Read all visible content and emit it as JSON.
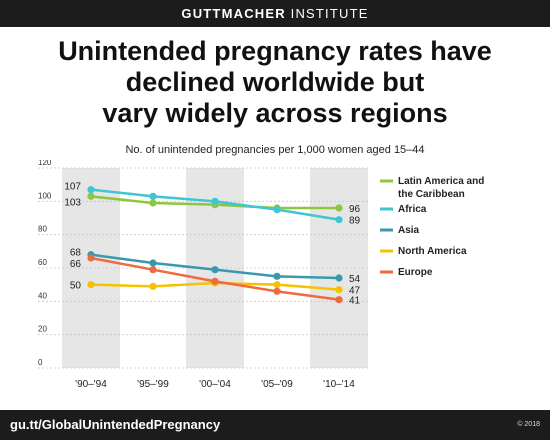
{
  "header": {
    "brand_bold": "GUTTMACHER",
    "brand_light": " INSTITUTE"
  },
  "title_lines": [
    "Unintended pregnancy rates have",
    "declined worldwide but",
    "vary widely across regions"
  ],
  "footer": {
    "url": "gu.tt/GlobalUnintendedPregnancy",
    "copyright": "© 2018"
  },
  "chart_data": {
    "type": "line",
    "title": "",
    "ylabel": "",
    "subtitle": "No. of unintended pregnancies per 1,000 women aged 15–44",
    "categories": [
      "'90–'94",
      "'95–'99",
      "'00–'04",
      "'05–'09",
      "'10–'14"
    ],
    "ylim": [
      0,
      120
    ],
    "yticks": [
      0,
      20,
      40,
      60,
      80,
      100,
      120
    ],
    "grid": true,
    "legend_position": "right",
    "shaded_columns": [
      0,
      2,
      4
    ],
    "series": [
      {
        "name": "Latin America and the Caribbean",
        "color": "#8dc63f",
        "values": [
          103,
          99,
          98,
          96,
          96
        ],
        "labels": [
          "103",
          "",
          "",
          "",
          "96"
        ]
      },
      {
        "name": "Africa",
        "color": "#3ec6d1",
        "values": [
          107,
          103,
          100,
          95,
          89
        ],
        "labels": [
          "107",
          "",
          "",
          "",
          "89"
        ]
      },
      {
        "name": "Asia",
        "color": "#3a98ad",
        "values": [
          68,
          63,
          59,
          55,
          54
        ],
        "labels": [
          "68",
          "",
          "",
          "",
          "54"
        ]
      },
      {
        "name": "North America",
        "color": "#f5c200",
        "values": [
          50,
          49,
          51,
          50,
          47
        ],
        "labels": [
          "50",
          "",
          "",
          "",
          "47"
        ]
      },
      {
        "name": "Europe",
        "color": "#ee6a3f",
        "values": [
          66,
          59,
          52,
          46,
          41
        ],
        "labels": [
          "66",
          "",
          "",
          "",
          "41"
        ]
      }
    ]
  }
}
